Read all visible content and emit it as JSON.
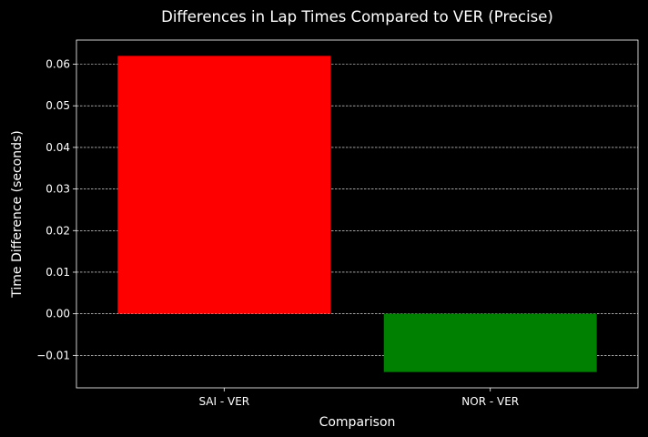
{
  "chart_data": {
    "type": "bar",
    "title": "Differences in Lap Times Compared to VER (Precise)",
    "xlabel": "Comparison",
    "ylabel": "Time Difference (seconds)",
    "categories": [
      "SAI - VER",
      "NOR - VER"
    ],
    "values": [
      0.062,
      -0.014
    ],
    "bar_colors": [
      "#ff0000",
      "#008000"
    ],
    "ylim": [
      -0.0178,
      0.0658
    ],
    "yticks": [
      -0.01,
      0.0,
      0.01,
      0.02,
      0.03,
      0.04,
      0.05,
      0.06
    ],
    "ytick_labels": [
      "−0.01",
      "0.00",
      "0.01",
      "0.02",
      "0.03",
      "0.04",
      "0.05",
      "0.06"
    ],
    "grid": "horizontal dashed",
    "background_color": "#000000",
    "text_color": "#ffffff",
    "grid_color": "#ffffff"
  }
}
